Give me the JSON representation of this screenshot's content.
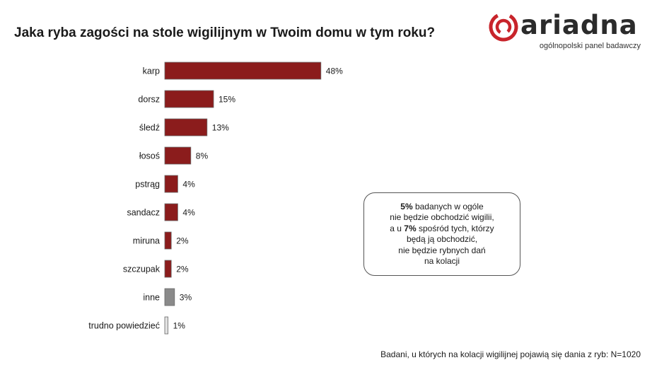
{
  "title": "Jaka ryba zagości na stole wigilijnym w Twoim domu w tym roku?",
  "logo": {
    "name": "ariadna",
    "subtitle": "ogólnopolski panel badawczy",
    "color": "#c8242b"
  },
  "note": {
    "line1_bold": "5%",
    "line1_rest": " badanych w ogóle",
    "line2": "nie będzie obchodzić wigilii,",
    "line3_pre": "a u ",
    "line3_bold": "7%",
    "line3_rest": " spośród tych, którzy",
    "line4": "będą ją obchodzić,",
    "line5": "nie będzie rybnych dań",
    "line6": "na kolacji"
  },
  "footnote": "Badani, u których na kolacji wigilijnej pojawią się dania z ryb: N=1020",
  "chart_data": {
    "type": "bar",
    "orientation": "horizontal",
    "categories": [
      "karp",
      "dorsz",
      "śledź",
      "łosoś",
      "pstrąg",
      "sandacz",
      "miruna",
      "szczupak",
      "inne",
      "trudno powiedzieć"
    ],
    "values": [
      48,
      15,
      13,
      8,
      4,
      4,
      2,
      2,
      3,
      1
    ],
    "value_labels": [
      "48%",
      "15%",
      "13%",
      "8%",
      "4%",
      "4%",
      "2%",
      "2%",
      "3%",
      "1%"
    ],
    "unit": "%",
    "colors": [
      "#8b1c1c",
      "#8b1c1c",
      "#8b1c1c",
      "#8b1c1c",
      "#8b1c1c",
      "#8b1c1c",
      "#8b1c1c",
      "#8b1c1c",
      "#8a8a8a",
      "#e2e2e2"
    ],
    "grid": false,
    "legend": false
  }
}
